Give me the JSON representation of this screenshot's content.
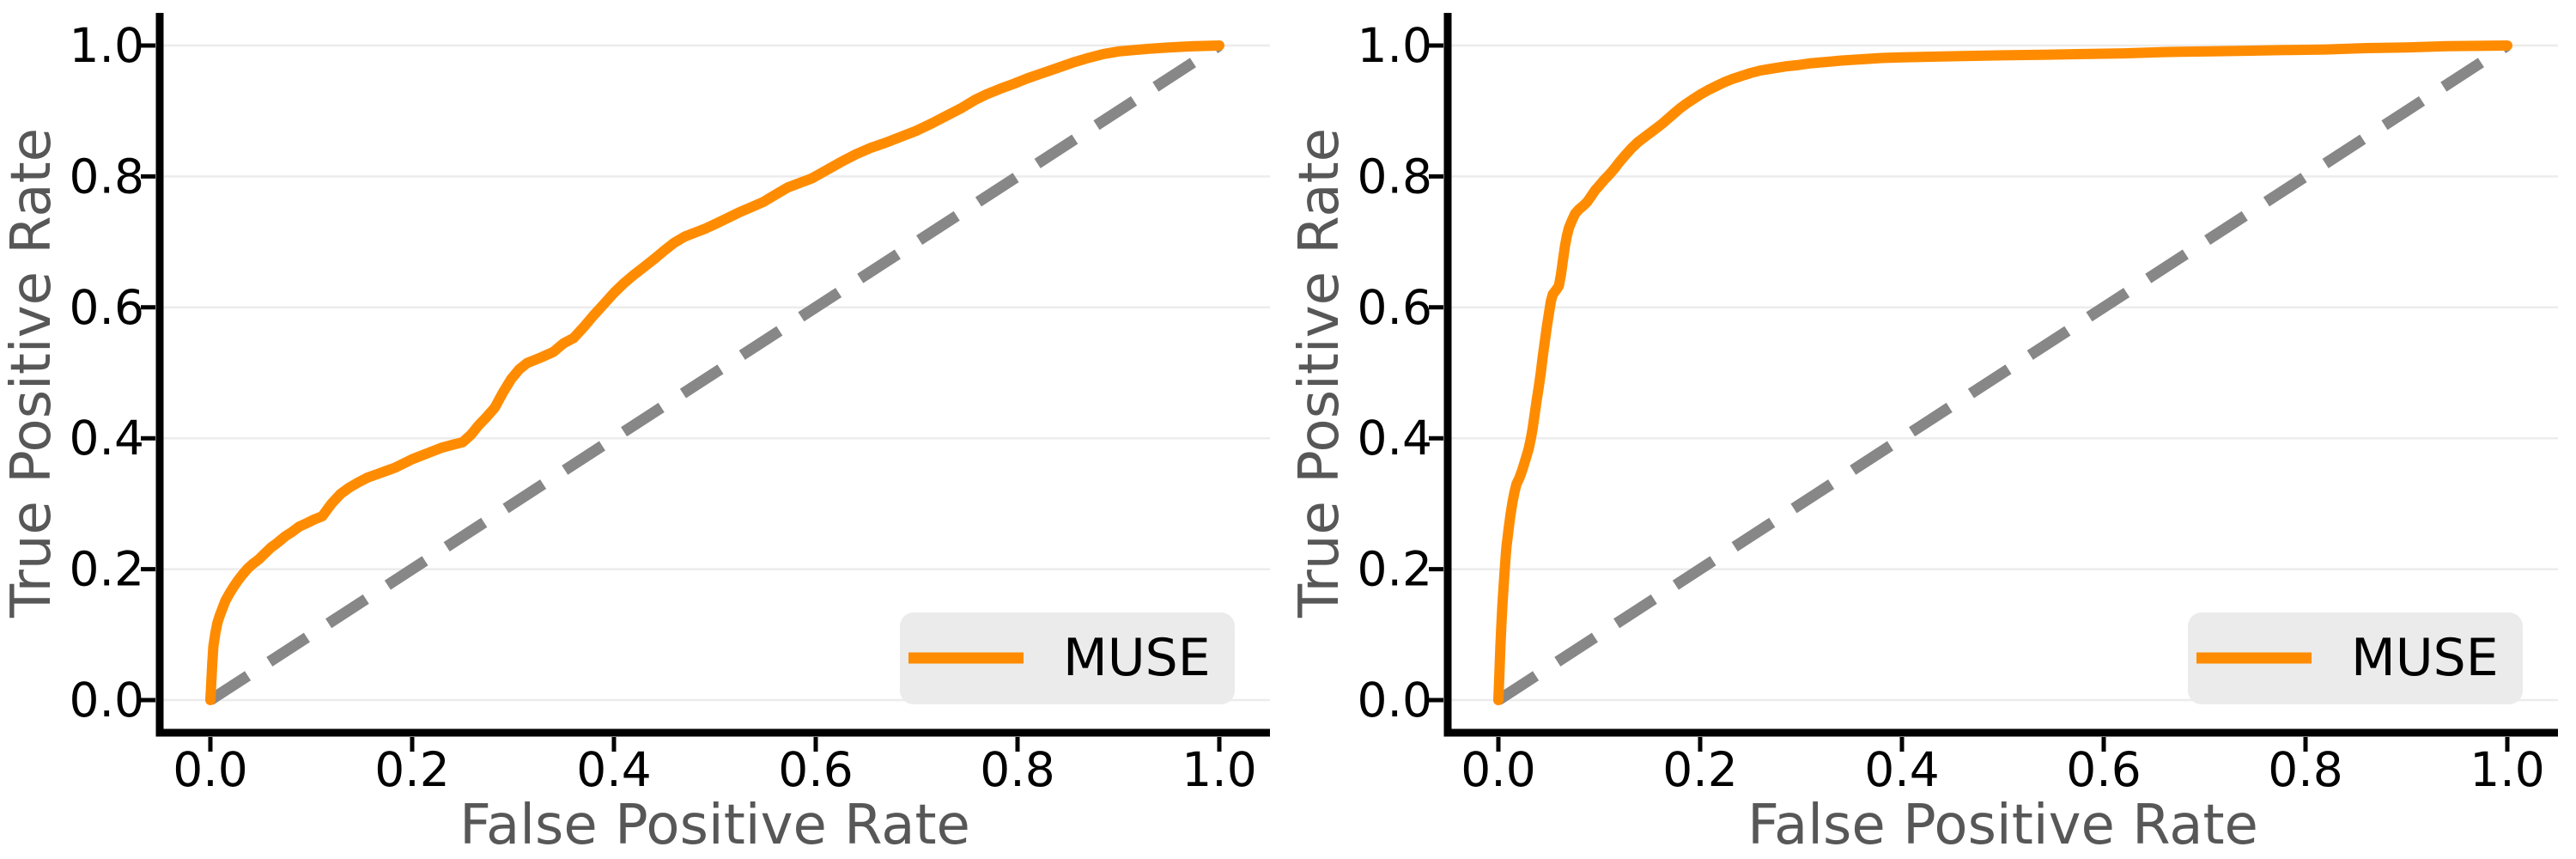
{
  "colors": {
    "curve": "#FF8C00",
    "diagonal": "#878787",
    "grid": "#ECECEC",
    "spine": "#000000",
    "tick_label": "#000000",
    "axis_label": "#575757",
    "legend_bg": "#EBEBEB",
    "legend_text": "#000000",
    "background": "#FFFFFF"
  },
  "chart_data": [
    {
      "type": "line",
      "xlabel": "False Positive Rate",
      "ylabel": "True Positive Rate",
      "xlim": [
        0,
        1
      ],
      "ylim": [
        0,
        1
      ],
      "x_ticks": [
        "0.0",
        "0.2",
        "0.4",
        "0.6",
        "0.8",
        "1.0"
      ],
      "y_ticks": [
        "0.0",
        "0.2",
        "0.4",
        "0.6",
        "0.8",
        "1.0"
      ],
      "grid": "horizontal",
      "legend": {
        "label": "MUSE",
        "position": "lower-right"
      },
      "series": [
        {
          "name": "MUSE",
          "style": "solid",
          "points": [
            [
              0,
              0
            ],
            [
              0.001,
              0.03
            ],
            [
              0.002,
              0.058
            ],
            [
              0.003,
              0.082
            ],
            [
              0.005,
              0.103
            ],
            [
              0.007,
              0.118
            ],
            [
              0.009,
              0.128
            ],
            [
              0.012,
              0.14
            ],
            [
              0.015,
              0.152
            ],
            [
              0.019,
              0.163
            ],
            [
              0.023,
              0.173
            ],
            [
              0.027,
              0.182
            ],
            [
              0.032,
              0.192
            ],
            [
              0.037,
              0.201
            ],
            [
              0.042,
              0.208
            ],
            [
              0.048,
              0.215
            ],
            [
              0.054,
              0.224
            ],
            [
              0.06,
              0.233
            ],
            [
              0.067,
              0.241
            ],
            [
              0.074,
              0.25
            ],
            [
              0.081,
              0.257
            ],
            [
              0.088,
              0.265
            ],
            [
              0.095,
              0.27
            ],
            [
              0.103,
              0.276
            ],
            [
              0.111,
              0.281
            ],
            [
              0.12,
              0.3
            ],
            [
              0.129,
              0.315
            ],
            [
              0.138,
              0.325
            ],
            [
              0.147,
              0.333
            ],
            [
              0.156,
              0.34
            ],
            [
              0.165,
              0.345
            ],
            [
              0.174,
              0.35
            ],
            [
              0.183,
              0.355
            ],
            [
              0.192,
              0.362
            ],
            [
              0.2,
              0.368
            ],
            [
              0.21,
              0.374
            ],
            [
              0.22,
              0.38
            ],
            [
              0.23,
              0.386
            ],
            [
              0.24,
              0.39
            ],
            [
              0.25,
              0.394
            ],
            [
              0.258,
              0.405
            ],
            [
              0.266,
              0.42
            ],
            [
              0.274,
              0.433
            ],
            [
              0.282,
              0.447
            ],
            [
              0.29,
              0.47
            ],
            [
              0.298,
              0.49
            ],
            [
              0.306,
              0.505
            ],
            [
              0.314,
              0.515
            ],
            [
              0.322,
              0.52
            ],
            [
              0.33,
              0.525
            ],
            [
              0.34,
              0.532
            ],
            [
              0.35,
              0.545
            ],
            [
              0.36,
              0.553
            ],
            [
              0.37,
              0.57
            ],
            [
              0.38,
              0.588
            ],
            [
              0.39,
              0.605
            ],
            [
              0.4,
              0.622
            ],
            [
              0.41,
              0.637
            ],
            [
              0.42,
              0.65
            ],
            [
              0.43,
              0.662
            ],
            [
              0.44,
              0.674
            ],
            [
              0.45,
              0.687
            ],
            [
              0.46,
              0.699
            ],
            [
              0.47,
              0.708
            ],
            [
              0.48,
              0.714
            ],
            [
              0.49,
              0.72
            ],
            [
              0.5,
              0.727
            ],
            [
              0.512,
              0.736
            ],
            [
              0.524,
              0.745
            ],
            [
              0.536,
              0.753
            ],
            [
              0.548,
              0.761
            ],
            [
              0.56,
              0.772
            ],
            [
              0.572,
              0.783
            ],
            [
              0.584,
              0.79
            ],
            [
              0.596,
              0.797
            ],
            [
              0.61,
              0.809
            ],
            [
              0.625,
              0.822
            ],
            [
              0.64,
              0.834
            ],
            [
              0.655,
              0.844
            ],
            [
              0.67,
              0.852
            ],
            [
              0.685,
              0.861
            ],
            [
              0.7,
              0.87
            ],
            [
              0.715,
              0.881
            ],
            [
              0.73,
              0.893
            ],
            [
              0.745,
              0.905
            ],
            [
              0.758,
              0.917
            ],
            [
              0.77,
              0.926
            ],
            [
              0.783,
              0.934
            ],
            [
              0.797,
              0.942
            ],
            [
              0.81,
              0.95
            ],
            [
              0.825,
              0.958
            ],
            [
              0.84,
              0.966
            ],
            [
              0.855,
              0.974
            ],
            [
              0.87,
              0.981
            ],
            [
              0.885,
              0.987
            ],
            [
              0.9,
              0.991
            ],
            [
              0.915,
              0.993
            ],
            [
              0.93,
              0.995
            ],
            [
              0.95,
              0.997
            ],
            [
              0.975,
              0.999
            ],
            [
              1,
              1
            ]
          ]
        },
        {
          "name": "chance-diagonal",
          "style": "dashed",
          "points": [
            [
              0,
              0
            ],
            [
              1,
              1
            ]
          ]
        }
      ]
    },
    {
      "type": "line",
      "xlabel": "False Positive Rate",
      "ylabel": "True Positive Rate",
      "xlim": [
        0,
        1
      ],
      "ylim": [
        0,
        1
      ],
      "x_ticks": [
        "0.0",
        "0.2",
        "0.4",
        "0.6",
        "0.8",
        "1.0"
      ],
      "y_ticks": [
        "0.0",
        "0.2",
        "0.4",
        "0.6",
        "0.8",
        "1.0"
      ],
      "grid": "horizontal",
      "legend": {
        "label": "MUSE",
        "position": "lower-right"
      },
      "series": [
        {
          "name": "MUSE",
          "style": "solid",
          "points": [
            [
              0,
              0
            ],
            [
              0.001,
              0.04
            ],
            [
              0.002,
              0.08
            ],
            [
              0.003,
              0.115
            ],
            [
              0.004,
              0.145
            ],
            [
              0.005,
              0.17
            ],
            [
              0.006,
              0.193
            ],
            [
              0.007,
              0.214
            ],
            [
              0.008,
              0.234
            ],
            [
              0.01,
              0.26
            ],
            [
              0.012,
              0.283
            ],
            [
              0.014,
              0.302
            ],
            [
              0.016,
              0.318
            ],
            [
              0.018,
              0.33
            ],
            [
              0.021,
              0.34
            ],
            [
              0.024,
              0.353
            ],
            [
              0.027,
              0.368
            ],
            [
              0.03,
              0.384
            ],
            [
              0.032,
              0.398
            ],
            [
              0.034,
              0.415
            ],
            [
              0.036,
              0.437
            ],
            [
              0.038,
              0.458
            ],
            [
              0.04,
              0.478
            ],
            [
              0.042,
              0.5
            ],
            [
              0.044,
              0.525
            ],
            [
              0.046,
              0.548
            ],
            [
              0.048,
              0.57
            ],
            [
              0.05,
              0.59
            ],
            [
              0.052,
              0.609
            ],
            [
              0.054,
              0.62
            ],
            [
              0.057,
              0.626
            ],
            [
              0.06,
              0.633
            ],
            [
              0.062,
              0.65
            ],
            [
              0.064,
              0.672
            ],
            [
              0.066,
              0.694
            ],
            [
              0.068,
              0.71
            ],
            [
              0.07,
              0.722
            ],
            [
              0.073,
              0.733
            ],
            [
              0.076,
              0.743
            ],
            [
              0.08,
              0.75
            ],
            [
              0.084,
              0.755
            ],
            [
              0.088,
              0.761
            ],
            [
              0.092,
              0.77
            ],
            [
              0.096,
              0.779
            ],
            [
              0.1,
              0.786
            ],
            [
              0.105,
              0.795
            ],
            [
              0.11,
              0.803
            ],
            [
              0.115,
              0.812
            ],
            [
              0.12,
              0.822
            ],
            [
              0.126,
              0.833
            ],
            [
              0.132,
              0.843
            ],
            [
              0.138,
              0.852
            ],
            [
              0.144,
              0.859
            ],
            [
              0.15,
              0.866
            ],
            [
              0.156,
              0.873
            ],
            [
              0.162,
              0.88
            ],
            [
              0.168,
              0.888
            ],
            [
              0.174,
              0.896
            ],
            [
              0.18,
              0.904
            ],
            [
              0.187,
              0.912
            ],
            [
              0.194,
              0.919
            ],
            [
              0.2,
              0.925
            ],
            [
              0.208,
              0.932
            ],
            [
              0.216,
              0.938
            ],
            [
              0.224,
              0.944
            ],
            [
              0.232,
              0.949
            ],
            [
              0.24,
              0.953
            ],
            [
              0.25,
              0.958
            ],
            [
              0.26,
              0.962
            ],
            [
              0.272,
              0.965
            ],
            [
              0.284,
              0.968
            ],
            [
              0.296,
              0.97
            ],
            [
              0.31,
              0.973
            ],
            [
              0.325,
              0.975
            ],
            [
              0.34,
              0.977
            ],
            [
              0.36,
              0.979
            ],
            [
              0.38,
              0.981
            ],
            [
              0.4,
              0.982
            ],
            [
              0.43,
              0.983
            ],
            [
              0.46,
              0.984
            ],
            [
              0.5,
              0.985
            ],
            [
              0.54,
              0.986
            ],
            [
              0.58,
              0.987
            ],
            [
              0.62,
              0.988
            ],
            [
              0.66,
              0.99
            ],
            [
              0.7,
              0.991
            ],
            [
              0.74,
              0.992
            ],
            [
              0.78,
              0.993
            ],
            [
              0.82,
              0.994
            ],
            [
              0.86,
              0.996
            ],
            [
              0.9,
              0.997
            ],
            [
              0.94,
              0.999
            ],
            [
              1,
              1
            ]
          ]
        },
        {
          "name": "chance-diagonal",
          "style": "dashed",
          "points": [
            [
              0,
              0
            ],
            [
              1,
              1
            ]
          ]
        }
      ]
    }
  ]
}
